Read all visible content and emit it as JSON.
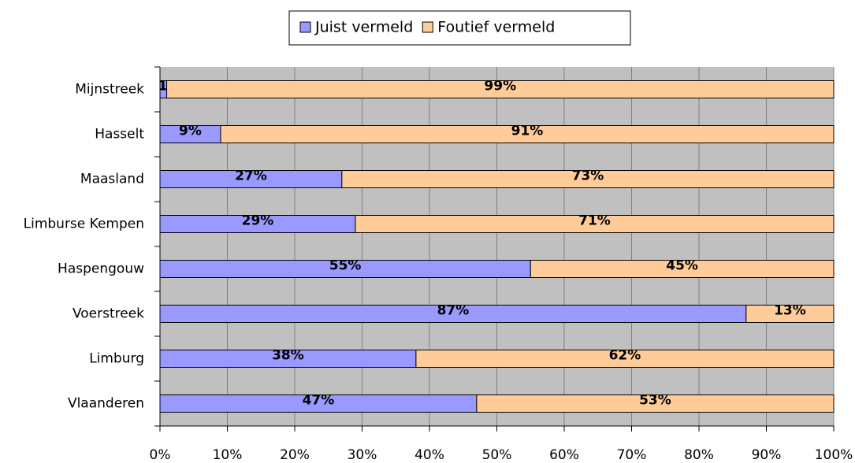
{
  "chart_data": {
    "type": "bar",
    "orientation": "horizontal",
    "stacked": true,
    "categories": [
      "Mijnstreek",
      "Hasselt",
      "Maasland",
      "Limburse Kempen",
      "Haspengouw",
      "Voerstreek",
      "Limburg",
      "Vlaanderen"
    ],
    "series": [
      {
        "name": "Juist vermeld",
        "color": "#9999ff",
        "values": [
          1,
          9,
          27,
          29,
          55,
          87,
          38,
          47
        ],
        "value_labels": [
          "1%",
          "9%",
          "27%",
          "29%",
          "55%",
          "87%",
          "38%",
          "47%"
        ]
      },
      {
        "name": "Foutief vermeld",
        "color": "#ffcc99",
        "values": [
          99,
          91,
          73,
          71,
          45,
          13,
          62,
          53
        ],
        "value_labels": [
          "99%",
          "91%",
          "73%",
          "71%",
          "45%",
          "13%",
          "62%",
          "53%"
        ]
      }
    ],
    "xlim": [
      0,
      100
    ],
    "xticks": [
      {
        "value": 0,
        "label": "0%"
      },
      {
        "value": 10,
        "label": "10%"
      },
      {
        "value": 20,
        "label": "20%"
      },
      {
        "value": 30,
        "label": "30%"
      },
      {
        "value": 40,
        "label": "40%"
      },
      {
        "value": 50,
        "label": "50%"
      },
      {
        "value": 60,
        "label": "60%"
      },
      {
        "value": 70,
        "label": "70%"
      },
      {
        "value": 80,
        "label": "80%"
      },
      {
        "value": 90,
        "label": "90%"
      },
      {
        "value": 100,
        "label": "100%"
      }
    ],
    "grid": true,
    "legend": "top"
  }
}
